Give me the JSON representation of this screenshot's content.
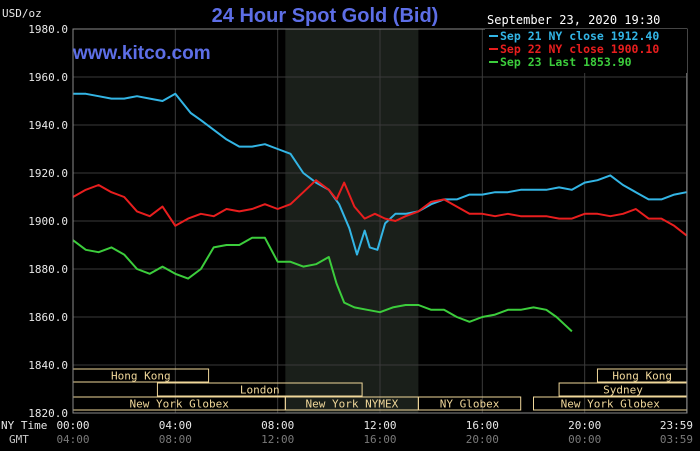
{
  "chart_data": {
    "type": "line",
    "title": "24 Hour Spot Gold (Bid)",
    "watermark": "www.kitco.com",
    "ylabel": "USD/oz",
    "date_label": "September 23, 2020 19:30",
    "ylim": [
      1820,
      1980
    ],
    "y_ticks": [
      "1980.0",
      "1960.0",
      "1940.0",
      "1920.0",
      "1900.0",
      "1880.0",
      "1860.0",
      "1840.0",
      "1820.0"
    ],
    "y_tick_values": [
      1980,
      1960,
      1940,
      1920,
      1900,
      1880,
      1860,
      1840,
      1820
    ],
    "xlim": [
      0,
      24
    ],
    "x_ticks": [
      "00:00",
      "04:00",
      "08:00",
      "12:00",
      "16:00",
      "20:00",
      "23:59"
    ],
    "x_ticks_gmt": [
      "04:00",
      "08:00",
      "12:00",
      "16:00",
      "20:00",
      "00:00",
      "03:59"
    ],
    "x_tick_values": [
      0,
      4,
      8,
      12,
      16,
      20,
      23.98
    ],
    "x_axis_label_1": "NY Time",
    "x_axis_label_2": "GMT",
    "grid": true,
    "legend_position": "top-right",
    "colors": {
      "background": "#000000",
      "plot_background": "#000000",
      "highlight_band": "#1a1f1a",
      "grid": "#3a3a3a",
      "title": "#5d6ee6",
      "session": "#f0d79a"
    },
    "highlight_range": [
      8.3,
      13.5
    ],
    "series": [
      {
        "name": "Sep 21 NY close 1912.40",
        "color": "#33b5e5",
        "x": [
          0,
          0.5,
          1,
          1.5,
          2,
          2.5,
          3,
          3.5,
          4,
          4.3,
          4.6,
          5,
          5.5,
          6,
          6.5,
          7,
          7.5,
          8,
          8.5,
          9,
          9.5,
          10,
          10.4,
          10.8,
          11.1,
          11.4,
          11.6,
          11.9,
          12.2,
          12.6,
          13,
          13.5,
          14,
          14.5,
          15,
          15.5,
          16,
          16.5,
          17,
          17.5,
          18,
          18.5,
          19,
          19.5,
          20,
          20.5,
          21,
          21.5,
          22,
          22.5,
          23,
          23.5,
          23.98
        ],
        "y": [
          1953,
          1953,
          1952,
          1951,
          1951,
          1952,
          1951,
          1950,
          1953,
          1949,
          1945,
          1942,
          1938,
          1934,
          1931,
          1931,
          1932,
          1930,
          1928,
          1920,
          1916,
          1913,
          1907,
          1897,
          1886,
          1896,
          1889,
          1888,
          1899,
          1903,
          1903,
          1904,
          1907,
          1909,
          1909,
          1911,
          1911,
          1912,
          1912,
          1913,
          1913,
          1913,
          1914,
          1913,
          1916,
          1917,
          1919,
          1915,
          1912,
          1909,
          1909,
          1911,
          1912
        ]
      },
      {
        "name": "Sep 22 NY close 1900.10",
        "color": "#e81e1e",
        "x": [
          0,
          0.5,
          1,
          1.5,
          2,
          2.5,
          3,
          3.5,
          4,
          4.5,
          5,
          5.5,
          6,
          6.5,
          7,
          7.5,
          8,
          8.5,
          9,
          9.5,
          10,
          10.3,
          10.6,
          11,
          11.4,
          11.8,
          12.2,
          12.6,
          13,
          13.5,
          14,
          14.5,
          15,
          15.5,
          16,
          16.5,
          17,
          17.5,
          18,
          18.5,
          19,
          19.5,
          20,
          20.5,
          21,
          21.5,
          22,
          22.5,
          23,
          23.5,
          23.98
        ],
        "y": [
          1910,
          1913,
          1915,
          1912,
          1910,
          1904,
          1902,
          1906,
          1898,
          1901,
          1903,
          1902,
          1905,
          1904,
          1905,
          1907,
          1905,
          1907,
          1912,
          1917,
          1913,
          1909,
          1916,
          1906,
          1901,
          1903,
          1901,
          1900,
          1902,
          1904,
          1908,
          1909,
          1906,
          1903,
          1903,
          1902,
          1903,
          1902,
          1902,
          1902,
          1901,
          1901,
          1903,
          1903,
          1902,
          1903,
          1905,
          1901,
          1901,
          1898,
          1894
        ]
      },
      {
        "name": "Sep 23 Last 1853.90",
        "color": "#3ccd3c",
        "x": [
          0,
          0.5,
          1,
          1.5,
          2,
          2.5,
          3,
          3.5,
          4,
          4.5,
          5,
          5.5,
          6,
          6.5,
          7,
          7.5,
          8,
          8.5,
          9,
          9.5,
          10,
          10.3,
          10.6,
          11,
          11.5,
          12,
          12.5,
          13,
          13.5,
          14,
          14.5,
          15,
          15.5,
          16,
          16.5,
          17,
          17.5,
          18,
          18.5,
          18.9,
          19.2,
          19.5
        ],
        "y": [
          1892,
          1888,
          1887,
          1889,
          1886,
          1880,
          1878,
          1881,
          1878,
          1876,
          1880,
          1889,
          1890,
          1890,
          1893,
          1893,
          1883,
          1883,
          1881,
          1882,
          1885,
          1874,
          1866,
          1864,
          1863,
          1862,
          1864,
          1865,
          1865,
          1863,
          1863,
          1860,
          1858,
          1860,
          1861,
          1863,
          1863,
          1864,
          1863,
          1860,
          1857,
          1854
        ]
      }
    ],
    "sessions": [
      {
        "name": "Hong Kong",
        "start": 0,
        "end": 5.3,
        "row": 0
      },
      {
        "name": "Hong Kong",
        "start": 20.5,
        "end": 24,
        "row": 0
      },
      {
        "name": "London",
        "start": 3.3,
        "end": 11.3,
        "row": 1
      },
      {
        "name": "Sydney",
        "start": 19,
        "end": 24,
        "row": 1
      },
      {
        "name": "New York Globex",
        "start": 0,
        "end": 8.3,
        "row": 2
      },
      {
        "name": "New York NYMEX",
        "start": 8.3,
        "end": 13.5,
        "row": 2
      },
      {
        "name": "NY Globex",
        "start": 13.5,
        "end": 17.5,
        "row": 2
      },
      {
        "name": "New York Globex",
        "start": 18,
        "end": 24,
        "row": 2
      }
    ]
  }
}
